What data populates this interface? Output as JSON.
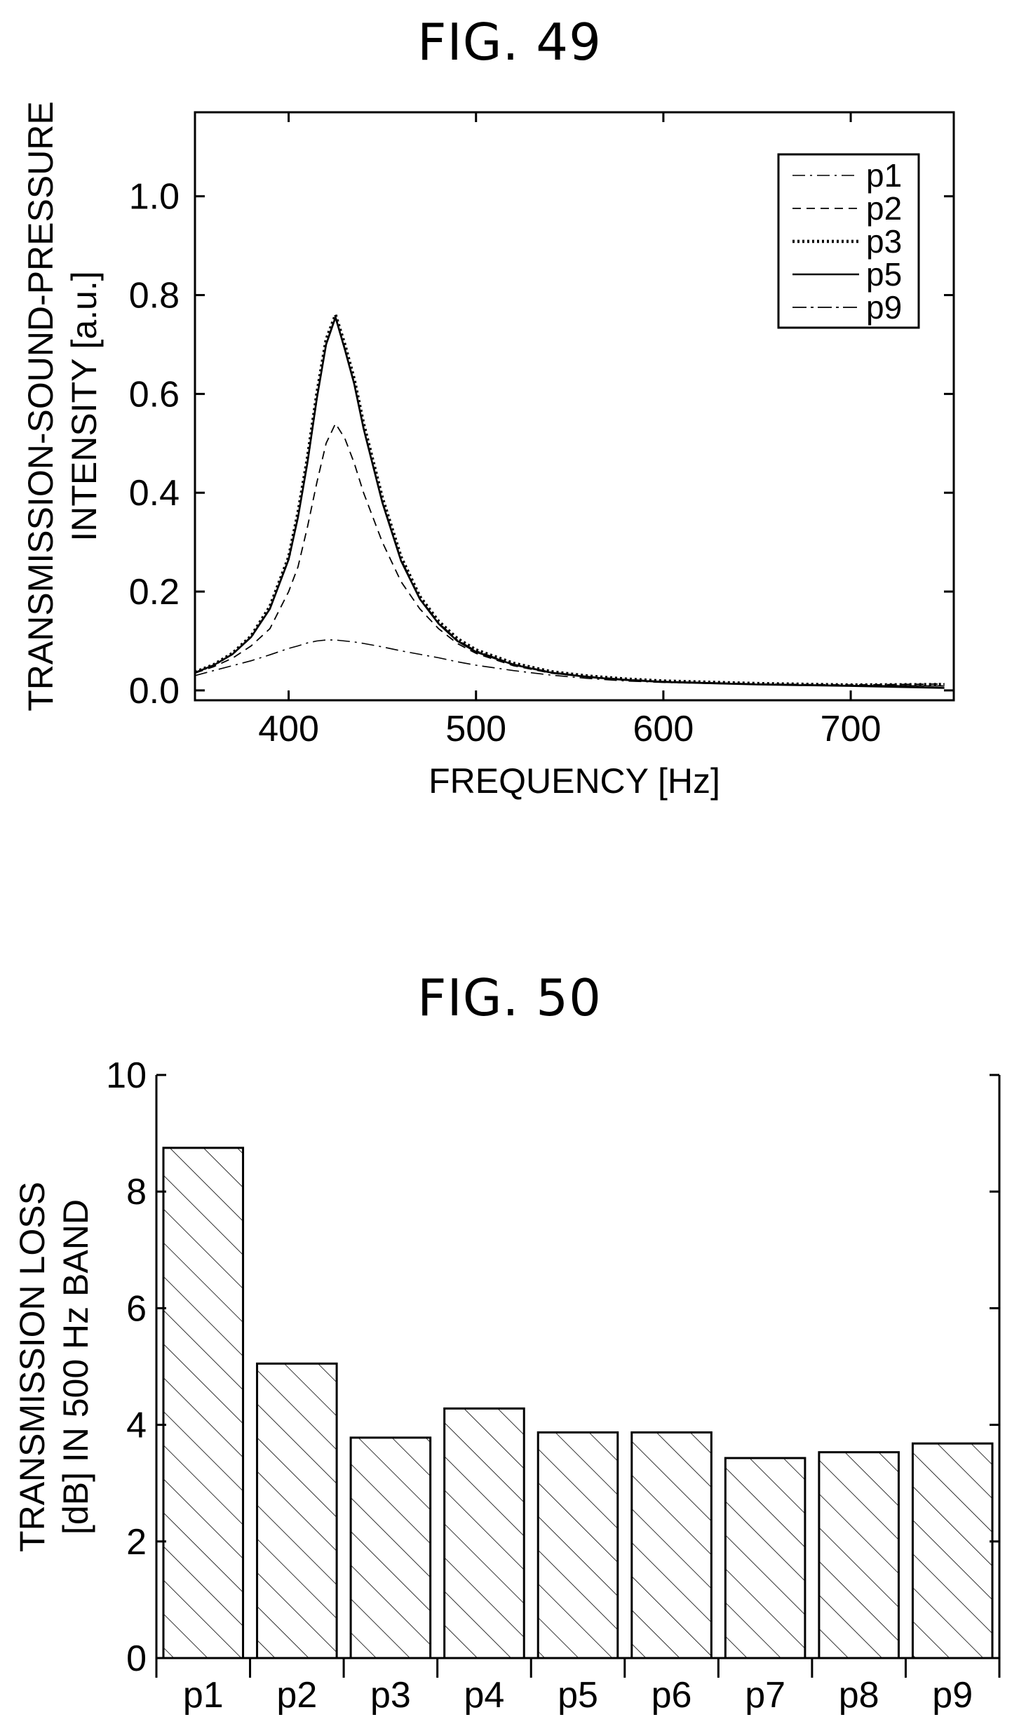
{
  "chart_data": [
    {
      "type": "line",
      "title": "FIG. 49",
      "xlabel": "FREQUENCY [Hz]",
      "ylabel_lines": [
        "TRANSMISSION-SOUND-PRESSURE",
        "INTENSITY [a.u.]"
      ],
      "xlim": [
        350,
        755
      ],
      "ylim": [
        -0.02,
        1.17
      ],
      "xticks": [
        400,
        500,
        600,
        700
      ],
      "xtick_labels": [
        "400",
        "500",
        "600",
        "700"
      ],
      "yticks": [
        0.0,
        0.2,
        0.4,
        0.6,
        0.8,
        1.0
      ],
      "ytick_labels": [
        "0.0",
        "0.2",
        "0.4",
        "0.6",
        "0.8",
        "1.0"
      ],
      "legend_position": "top-right",
      "x": [
        350,
        360,
        370,
        380,
        390,
        400,
        405,
        410,
        415,
        420,
        425,
        430,
        435,
        440,
        450,
        460,
        470,
        480,
        490,
        500,
        520,
        540,
        560,
        580,
        600,
        650,
        700,
        750
      ],
      "series": [
        {
          "name": "p1",
          "style": "dash-dot-thin",
          "values": [
            0.03,
            0.04,
            0.05,
            0.06,
            0.072,
            0.085,
            0.09,
            0.096,
            0.1,
            0.102,
            0.102,
            0.1,
            0.098,
            0.095,
            0.088,
            0.08,
            0.073,
            0.066,
            0.058,
            0.051,
            0.04,
            0.031,
            0.024,
            0.019,
            0.016,
            0.012,
            0.01,
            0.009
          ]
        },
        {
          "name": "p2",
          "style": "dashed",
          "values": [
            0.035,
            0.048,
            0.065,
            0.09,
            0.125,
            0.2,
            0.25,
            0.33,
            0.42,
            0.5,
            0.54,
            0.51,
            0.46,
            0.4,
            0.3,
            0.22,
            0.165,
            0.125,
            0.095,
            0.075,
            0.05,
            0.035,
            0.027,
            0.022,
            0.018,
            0.013,
            0.011,
            0.013
          ]
        },
        {
          "name": "p3",
          "style": "dotted-bold",
          "values": [
            0.037,
            0.052,
            0.075,
            0.11,
            0.17,
            0.27,
            0.36,
            0.47,
            0.6,
            0.71,
            0.76,
            0.7,
            0.63,
            0.54,
            0.39,
            0.27,
            0.19,
            0.14,
            0.105,
            0.082,
            0.055,
            0.038,
            0.029,
            0.023,
            0.019,
            0.014,
            0.011,
            0.012
          ]
        },
        {
          "name": "p5",
          "style": "solid",
          "values": [
            0.036,
            0.051,
            0.073,
            0.108,
            0.165,
            0.265,
            0.35,
            0.46,
            0.59,
            0.7,
            0.755,
            0.69,
            0.62,
            0.53,
            0.38,
            0.262,
            0.185,
            0.135,
            0.1,
            0.078,
            0.052,
            0.036,
            0.027,
            0.021,
            0.017,
            0.012,
            0.009,
            0.005
          ]
        },
        {
          "name": "p9",
          "style": "dash-dot",
          "values": [
            0.036,
            0.051,
            0.074,
            0.109,
            0.167,
            0.267,
            0.353,
            0.463,
            0.593,
            0.703,
            0.757,
            0.693,
            0.623,
            0.533,
            0.383,
            0.265,
            0.187,
            0.137,
            0.102,
            0.08,
            0.053,
            0.037,
            0.028,
            0.022,
            0.018,
            0.013,
            0.01,
            0.009
          ]
        }
      ]
    },
    {
      "type": "bar",
      "title": "FIG. 50",
      "ylabel_lines": [
        "TRANSMISSION LOSS",
        "[dB] IN 500 Hz BAND"
      ],
      "ylim": [
        0,
        10
      ],
      "yticks": [
        0,
        2,
        4,
        6,
        8,
        10
      ],
      "ytick_labels": [
        "0",
        "2",
        "4",
        "6",
        "8",
        "10"
      ],
      "categories": [
        "p1",
        "p2",
        "p3",
        "p4",
        "p5",
        "p6",
        "p7",
        "p8",
        "p9"
      ],
      "values": [
        8.75,
        5.05,
        3.78,
        4.28,
        3.87,
        3.87,
        3.43,
        3.53,
        3.68
      ],
      "fill": "diagonal-hatch"
    }
  ]
}
